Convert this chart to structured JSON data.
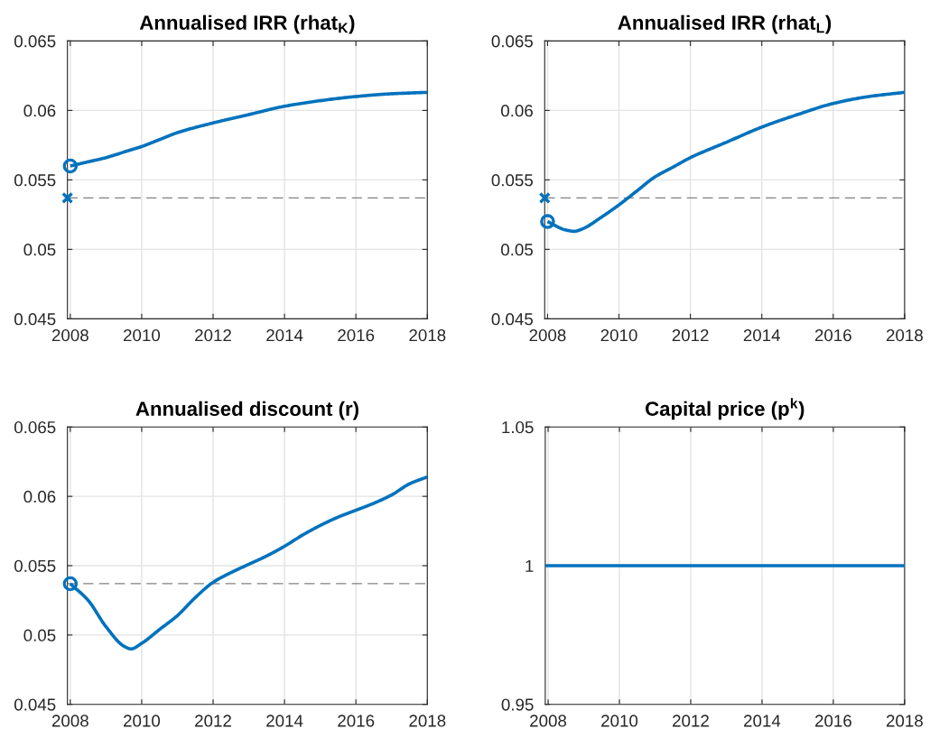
{
  "chart_data": [
    {
      "type": "line",
      "title": "Annualised IRR (rhat$_{K}$)",
      "xlim": [
        2007.92,
        2018
      ],
      "xticks": [
        2008,
        2010,
        2012,
        2014,
        2016,
        2018
      ],
      "ylim": [
        0.045,
        0.065
      ],
      "yticks": [
        0.045,
        0.05,
        0.055,
        0.06,
        0.065
      ],
      "grid": true,
      "series": [
        {
          "color": "#0072bd",
          "x": [
            2008,
            2008.5,
            2009,
            2009.5,
            2010,
            2010.5,
            2011,
            2012,
            2013,
            2014,
            2015,
            2016,
            2017,
            2018
          ],
          "values": [
            0.056,
            0.0563,
            0.0566,
            0.057,
            0.0574,
            0.0579,
            0.0584,
            0.0591,
            0.0597,
            0.0603,
            0.0607,
            0.061,
            0.0612,
            0.0613
          ]
        },
        {
          "type": "scatter",
          "marker": "circle",
          "color": "#0072bd",
          "x": [
            2008
          ],
          "values": [
            0.056
          ]
        },
        {
          "type": "scatter",
          "marker": "cross",
          "color": "#0072bd",
          "x": [
            2007.92
          ],
          "values": [
            0.0537
          ]
        }
      ],
      "ref_lines": [
        {
          "axis": "y",
          "value": 0.0537,
          "color": "#808080",
          "line_style": "dashed"
        }
      ]
    },
    {
      "type": "line",
      "title": "Annualised IRR (rhat$_{L}$)",
      "xlim": [
        2007.92,
        2018
      ],
      "xticks": [
        2008,
        2010,
        2012,
        2014,
        2016,
        2018
      ],
      "ylim": [
        0.045,
        0.065
      ],
      "yticks": [
        0.045,
        0.05,
        0.055,
        0.06,
        0.065
      ],
      "grid": true,
      "series": [
        {
          "color": "#0072bd",
          "x": [
            2008,
            2008.5,
            2008.75,
            2009,
            2009.5,
            2010,
            2010.5,
            2011,
            2011.5,
            2012,
            2013,
            2014,
            2015,
            2016,
            2017,
            2018
          ],
          "values": [
            0.052,
            0.0514,
            0.0513,
            0.0515,
            0.0523,
            0.0532,
            0.0542,
            0.0552,
            0.0559,
            0.0566,
            0.0577,
            0.0588,
            0.0597,
            0.0605,
            0.061,
            0.0613
          ]
        },
        {
          "type": "scatter",
          "marker": "circle",
          "color": "#0072bd",
          "x": [
            2008
          ],
          "values": [
            0.052
          ]
        },
        {
          "type": "scatter",
          "marker": "cross",
          "color": "#0072bd",
          "x": [
            2007.92
          ],
          "values": [
            0.0537
          ]
        }
      ],
      "ref_lines": [
        {
          "axis": "y",
          "value": 0.0537,
          "color": "#808080",
          "line_style": "dashed"
        }
      ]
    },
    {
      "type": "line",
      "title": "Annualised discount (r)",
      "xlim": [
        2007.92,
        2018
      ],
      "xticks": [
        2008,
        2010,
        2012,
        2014,
        2016,
        2018
      ],
      "ylim": [
        0.045,
        0.065
      ],
      "yticks": [
        0.045,
        0.05,
        0.055,
        0.06,
        0.065
      ],
      "grid": true,
      "series": [
        {
          "color": "#0072bd",
          "x": [
            2008,
            2008.5,
            2009,
            2009.5,
            2009.7,
            2010,
            2010.5,
            2011,
            2011.5,
            2012,
            2012.5,
            2013,
            2013.5,
            2014,
            2014.5,
            2015,
            2015.5,
            2016,
            2016.5,
            2017,
            2017.5,
            2018
          ],
          "values": [
            0.0537,
            0.0525,
            0.0506,
            0.0492,
            0.049,
            0.0494,
            0.0504,
            0.0514,
            0.0527,
            0.0538,
            0.0545,
            0.0551,
            0.0557,
            0.0564,
            0.0572,
            0.0579,
            0.0585,
            0.059,
            0.0595,
            0.0601,
            0.0609,
            0.0614
          ]
        },
        {
          "type": "scatter",
          "marker": "circle",
          "color": "#0072bd",
          "x": [
            2008
          ],
          "values": [
            0.0537
          ]
        }
      ],
      "ref_lines": [
        {
          "axis": "y",
          "value": 0.0537,
          "color": "#808080",
          "line_style": "dashed"
        }
      ]
    },
    {
      "type": "line",
      "title": "Capital price (p$^{k}$)",
      "xlim": [
        2007.92,
        2018
      ],
      "xticks": [
        2008,
        2010,
        2012,
        2014,
        2016,
        2018
      ],
      "ylim": [
        0.95,
        1.05
      ],
      "yticks": [
        0.95,
        1,
        1.05
      ],
      "grid": true,
      "series": [
        {
          "color": "#0072bd",
          "x": [
            2007.92,
            2018
          ],
          "values": [
            1,
            1
          ]
        }
      ]
    }
  ]
}
